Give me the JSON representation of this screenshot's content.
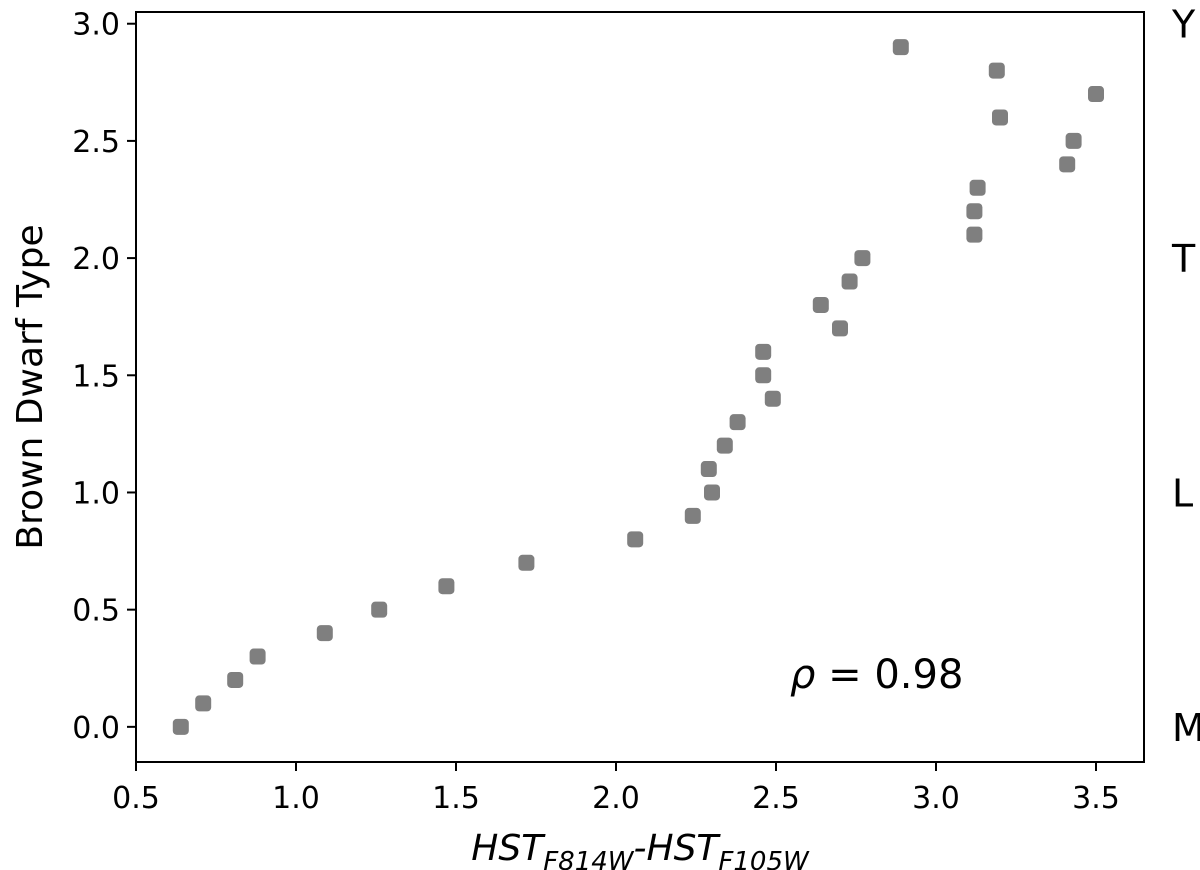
{
  "chart_data": {
    "type": "scatter",
    "title": "",
    "xlabel": {
      "main1": "HST",
      "sub1": "F814W",
      "sep": "-",
      "main2": "HST",
      "sub2": "F105W"
    },
    "ylabel": "Brown Dwarf Type",
    "xlim": [
      0.5,
      3.65
    ],
    "ylim": [
      -0.15,
      3.05
    ],
    "xticks": [
      0.5,
      1.0,
      1.5,
      2.0,
      2.5,
      3.0,
      3.5
    ],
    "xtick_labels": [
      "0.5",
      "1.0",
      "1.5",
      "2.0",
      "2.5",
      "3.0",
      "3.5"
    ],
    "yticks": [
      0.0,
      0.5,
      1.0,
      1.5,
      2.0,
      2.5,
      3.0
    ],
    "ytick_labels": [
      "0.0",
      "0.5",
      "1.0",
      "1.5",
      "2.0",
      "2.5",
      "3.0"
    ],
    "type_labels": [
      {
        "label": "Y",
        "y": 3.0
      },
      {
        "label": "T",
        "y": 2.0
      },
      {
        "label": "L",
        "y": 1.0
      },
      {
        "label": "M",
        "y": 0.0
      }
    ],
    "annotation": {
      "symbol": "ρ",
      "eq": " = ",
      "value": "0.98"
    },
    "marker_color": "#7f7f7f",
    "grid": false,
    "series": [
      {
        "x": [
          0.64,
          0.71,
          0.81,
          0.88,
          1.09,
          1.26,
          1.47,
          1.72,
          2.06,
          2.24,
          2.29,
          2.3,
          2.34,
          2.38,
          2.46,
          2.46,
          2.49,
          2.64,
          2.7,
          2.73,
          2.77,
          2.89,
          3.12,
          3.12,
          3.13,
          3.19,
          3.2,
          3.41,
          3.43,
          3.5
        ],
        "y": [
          0.0,
          0.1,
          0.2,
          0.3,
          0.4,
          0.5,
          0.6,
          0.7,
          0.8,
          0.9,
          1.1,
          1.0,
          1.2,
          1.3,
          1.5,
          1.6,
          1.4,
          1.8,
          1.7,
          1.9,
          2.0,
          2.9,
          2.1,
          2.2,
          2.3,
          2.8,
          2.6,
          2.4,
          2.5,
          2.7
        ]
      }
    ]
  }
}
